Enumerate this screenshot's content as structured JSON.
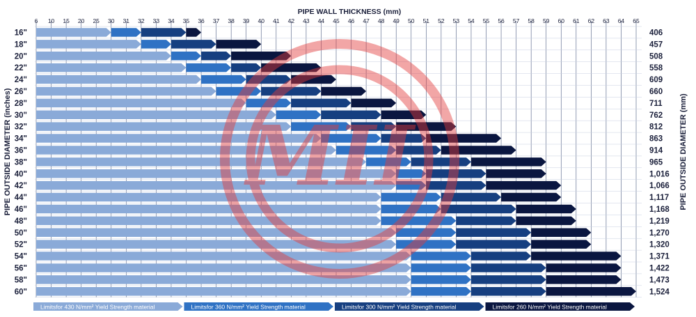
{
  "chart_data": {
    "type": "bar",
    "title": "PIPE WALL THICKNESS (mm)",
    "ylabel_left": "PIPE OUTSIDE DIAMETER  (inches)",
    "ylabel_right": "PIPE OUTSIDE DIAMETER  (mm)",
    "x_ticks": [
      "6",
      "10",
      "15",
      "20",
      "25",
      "30",
      "31",
      "32",
      "33",
      "34",
      "35",
      "36",
      "37",
      "38",
      "39",
      "40",
      "41",
      "42",
      "43",
      "44",
      "45",
      "46",
      "47",
      "48",
      "49",
      "50",
      "51",
      "52",
      "53",
      "54",
      "55",
      "56",
      "57",
      "58",
      "59",
      "60",
      "61",
      "62",
      "63",
      "64",
      "65"
    ],
    "sizes_in": [
      "16\"",
      "18\"",
      "20\"",
      "22\"",
      "24\"",
      "26\"",
      "28\"",
      "30\"",
      "32\"",
      "34\"",
      "36\"",
      "38\"",
      "40\"",
      "42\"",
      "44\"",
      "46\"",
      "48\"",
      "50\"",
      "52\"",
      "54\"",
      "56\"",
      "58\"",
      "60\""
    ],
    "sizes_mm": [
      "406",
      "457",
      "508",
      "558",
      "609",
      "660",
      "711",
      "762",
      "812",
      "863",
      "914",
      "965",
      "1,016",
      "1,066",
      "1,117",
      "1,168",
      "1,219",
      "1,270",
      "1,320",
      "1,371",
      "1,422",
      "1,473",
      "1,524"
    ],
    "series": [
      {
        "name": "Limitsfor 430 N/mm² Yield Strength material",
        "color": "#8aaad8",
        "values": [
          30,
          32,
          34,
          35,
          36,
          37,
          39,
          41,
          42,
          44,
          45,
          47,
          49,
          49,
          48,
          48,
          48,
          49,
          49,
          50,
          50,
          50,
          50
        ]
      },
      {
        "name": "Limitsfor 360 N/mm² Yield Strength material",
        "color": "#2f72c4",
        "values": [
          32,
          34,
          36,
          38,
          39,
          40,
          42,
          44,
          46,
          48,
          49,
          50,
          51,
          51,
          52,
          52,
          53,
          53,
          53,
          54,
          54,
          54,
          54
        ]
      },
      {
        "name": "Limitsfor 300 N/mm² Yield Strength material",
        "color": "#163f80",
        "values": [
          35,
          37,
          38,
          40,
          42,
          44,
          46,
          48,
          49,
          51,
          52,
          54,
          55,
          55,
          56,
          57,
          57,
          58,
          58,
          58,
          59,
          59,
          59
        ]
      },
      {
        "name": "Limitsfor 260 N/mm² Yield Strength material",
        "color": "#0a1640",
        "values": [
          36,
          40,
          42,
          44,
          45,
          47,
          49,
          51,
          53,
          56,
          57,
          59,
          59,
          60,
          60,
          61,
          61,
          62,
          62,
          64,
          64,
          64,
          65
        ]
      }
    ],
    "watermark_text": "MIL"
  }
}
